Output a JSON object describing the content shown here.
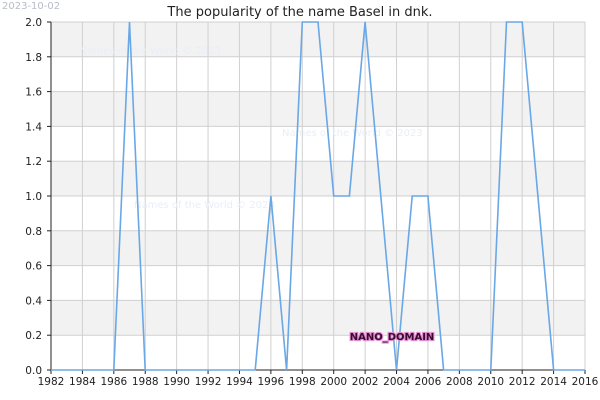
{
  "header": {
    "date_stamp": "2023-10-02",
    "title": "The popularity of the name Basel in dnk."
  },
  "watermarks": [
    "Names of the World © 2023",
    "Names of the World © 2023",
    "Names of the World © 2023"
  ],
  "domain_label": "NANO_DOMAIN",
  "colors": {
    "line": "#6aa7e6",
    "band": "#f2f2f2",
    "grid": "#d0d0d0",
    "axis": "#222222"
  },
  "chart_data": {
    "type": "line",
    "title": "The popularity of the name Basel in dnk.",
    "xlabel": "",
    "ylabel": "",
    "xlim": [
      1982,
      2016
    ],
    "ylim": [
      0,
      2
    ],
    "grid": true,
    "x_ticks": [
      "1982",
      "1984",
      "1986",
      "1988",
      "1990",
      "1992",
      "1994",
      "1996",
      "1998",
      "2000",
      "2002",
      "2004",
      "2006",
      "2008",
      "2010",
      "2012",
      "2014",
      "2016"
    ],
    "y_ticks": [
      "0.0",
      "0.2",
      "0.4",
      "0.6",
      "0.8",
      "1.0",
      "1.2",
      "1.4",
      "1.6",
      "1.8",
      "2.0"
    ],
    "x": [
      1982,
      1983,
      1984,
      1985,
      1986,
      1987,
      1988,
      1989,
      1990,
      1991,
      1992,
      1993,
      1994,
      1995,
      1996,
      1997,
      1998,
      1999,
      2000,
      2001,
      2002,
      2003,
      2004,
      2005,
      2006,
      2007,
      2008,
      2009,
      2010,
      2011,
      2012,
      2013,
      2014,
      2015,
      2016
    ],
    "y": [
      0,
      0,
      0,
      0,
      0,
      2,
      0,
      0,
      0,
      0,
      0,
      0,
      0,
      0,
      1,
      0,
      2,
      2,
      1,
      1,
      2,
      1,
      0,
      1,
      1,
      0,
      0,
      0,
      0,
      2,
      2,
      1,
      0,
      0,
      0
    ]
  }
}
